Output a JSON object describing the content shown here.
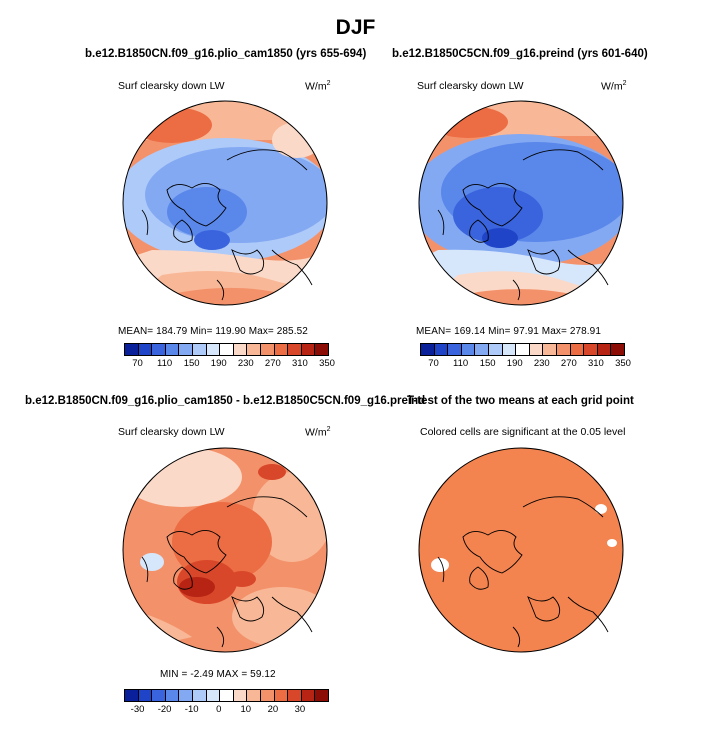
{
  "title": "DJF",
  "panels": [
    {
      "title": "b.e12.B1850CN.f09_g16.plio_cam1850 (yrs 655-694)",
      "variable": "Surf clearsky down LW",
      "units": "W/m",
      "units_exp": "2",
      "stats": "MEAN=  184.79    Min=  119.90    Max=  285.52"
    },
    {
      "title": "b.e12.B1850C5CN.f09_g16.preind (yrs 601-640)",
      "variable": "Surf clearsky down LW",
      "units": "W/m",
      "units_exp": "2",
      "stats": "MEAN=  169.14    Min=   97.91    Max=  278.91"
    },
    {
      "title": "b.e12.B1850CN.f09_g16.plio_cam1850 - b.e12.B1850C5CN.f09_g16.preind",
      "variable": "Surf clearsky down LW",
      "units": "W/m",
      "units_exp": "2",
      "stats": "MIN  =   -2.49  MAX  =   59.12"
    },
    {
      "title": "T-test of the two means at each grid point",
      "variable": "Colored cells are significant at the 0.05 level"
    }
  ],
  "colorbars": {
    "absolute": {
      "colors": [
        "#0a1f9a",
        "#1f44c8",
        "#3a64dd",
        "#5a87ea",
        "#84a9f3",
        "#aecaf8",
        "#d6e6fb",
        "#ffffff",
        "#fbd9c8",
        "#f8b897",
        "#f3926a",
        "#ec6c43",
        "#d9472a",
        "#b72414",
        "#8c0c06"
      ],
      "labels": [
        "70",
        "110",
        "150",
        "190",
        "230",
        "270",
        "310",
        "350"
      ]
    },
    "difference": {
      "colors": [
        "#0a1f9a",
        "#1f44c8",
        "#3a64dd",
        "#5a87ea",
        "#84a9f3",
        "#aecaf8",
        "#d6e6fb",
        "#ffffff",
        "#fbd9c8",
        "#f8b897",
        "#f3926a",
        "#ec6c43",
        "#d9472a",
        "#b72414",
        "#8c0c06"
      ],
      "labels": [
        "-30",
        "-20",
        "-10",
        "0",
        "10",
        "20",
        "30"
      ]
    }
  }
}
